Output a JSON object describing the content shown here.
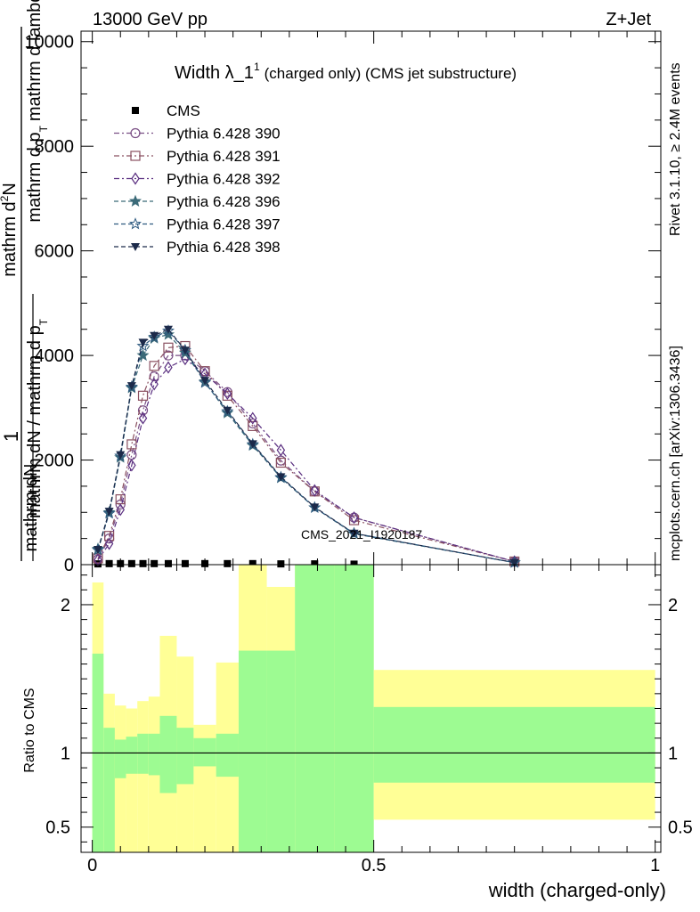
{
  "header": {
    "left": "13000 GeV pp",
    "right": "Z+Jet"
  },
  "side_labels": {
    "rivet": "Rivet 3.1.10, ≥ 2.4M events",
    "mcplots": "mcplots.cern.ch [arXiv:1306.3436]"
  },
  "watermark": "CMS_2021_I1920187",
  "chart_data": [
    {
      "type": "line",
      "title_main": "Width λ_1",
      "title_sup": "1",
      "title_rest": "(charged only) (CMS jet substructure)",
      "ylabel_top": "1",
      "ylabel_frac_top": "mathrm dN / mathrm d p",
      "ylabel_frac_sub": "T",
      "ylabel_frac_bottom_1": "mathrm dN",
      "ylabel_numerator": "mathrm d",
      "ylabel_numerator_sup": "2",
      "ylabel_numerator_n": "N",
      "ylabel_den": "mathrm d p",
      "ylabel_den_sub": "T",
      "ylabel_den_rest": "mathrm d lambda",
      "xlim": [
        -0.02,
        1.01
      ],
      "ylim": [
        0,
        10200
      ],
      "yticks": [
        0,
        2000,
        4000,
        6000,
        8000,
        10000
      ],
      "ytick_labels": [
        "0",
        "2000",
        "4000",
        "6000",
        "8000",
        "10000"
      ],
      "legend_position": "top-left",
      "series": [
        {
          "name": "CMS",
          "color": "#000000",
          "marker": "square-filled",
          "dash": "",
          "x": [
            0.01,
            0.03,
            0.05,
            0.07,
            0.09,
            0.11,
            0.135,
            0.165,
            0.2,
            0.24,
            0.285,
            0.335,
            0.395,
            0.465
          ],
          "y": [
            15,
            20,
            20,
            20,
            20,
            20,
            20,
            20,
            20,
            20,
            20,
            15,
            15,
            10
          ]
        },
        {
          "name": "Pythia 6.428 390",
          "color": "#7a4f85",
          "marker": "circle-open",
          "dash": "6,3,2,3",
          "x": [
            0.01,
            0.03,
            0.05,
            0.07,
            0.09,
            0.11,
            0.135,
            0.165,
            0.2,
            0.24,
            0.285,
            0.335,
            0.395,
            0.465,
            0.75
          ],
          "y": [
            100,
            500,
            1150,
            2100,
            2950,
            3600,
            4000,
            4000,
            3700,
            3300,
            2700,
            1990,
            1400,
            900,
            60
          ]
        },
        {
          "name": "Pythia 6.428 391",
          "color": "#8a5060",
          "marker": "square-open",
          "dash": "6,3,2,3",
          "x": [
            0.01,
            0.03,
            0.05,
            0.07,
            0.09,
            0.11,
            0.135,
            0.165,
            0.2,
            0.24,
            0.285,
            0.335,
            0.395,
            0.465,
            0.75
          ],
          "y": [
            120,
            550,
            1250,
            2300,
            3230,
            3800,
            4150,
            4180,
            3700,
            3230,
            2650,
            1950,
            1400,
            850,
            60
          ]
        },
        {
          "name": "Pythia 6.428 392",
          "color": "#5a2f80",
          "marker": "diamond-open",
          "dash": "6,3,2,3",
          "x": [
            0.01,
            0.03,
            0.05,
            0.07,
            0.09,
            0.11,
            0.135,
            0.165,
            0.2,
            0.24,
            0.285,
            0.335,
            0.395,
            0.465,
            0.75
          ],
          "y": [
            90,
            400,
            1050,
            1900,
            2800,
            3450,
            3770,
            3930,
            3650,
            3270,
            2800,
            2190,
            1420,
            900,
            60
          ]
        },
        {
          "name": "Pythia 6.428 396",
          "color": "#3b6a78",
          "marker": "star-filled",
          "dash": "5,3",
          "x": [
            0.01,
            0.03,
            0.05,
            0.07,
            0.09,
            0.11,
            0.135,
            0.165,
            0.2,
            0.24,
            0.285,
            0.335,
            0.395,
            0.465,
            0.75
          ],
          "y": [
            300,
            1000,
            2050,
            3380,
            4000,
            4330,
            4400,
            4050,
            3500,
            2900,
            2280,
            1660,
            1090,
            590,
            40
          ]
        },
        {
          "name": "Pythia 6.428 397",
          "color": "#2e5a80",
          "marker": "star-open",
          "dash": "5,3",
          "x": [
            0.01,
            0.03,
            0.05,
            0.07,
            0.09,
            0.11,
            0.135,
            0.165,
            0.2,
            0.24,
            0.285,
            0.335,
            0.395,
            0.465,
            0.75
          ],
          "y": [
            280,
            980,
            2080,
            3400,
            4180,
            4350,
            4470,
            4100,
            3480,
            2930,
            2300,
            1670,
            1090,
            600,
            40
          ]
        },
        {
          "name": "Pythia 6.428 398",
          "color": "#1c2a4a",
          "marker": "triangle-down-filled",
          "dash": "5,3",
          "x": [
            0.01,
            0.03,
            0.05,
            0.07,
            0.09,
            0.11,
            0.135,
            0.165,
            0.2,
            0.24,
            0.285,
            0.335,
            0.395,
            0.465,
            0.75
          ],
          "y": [
            290,
            1020,
            2100,
            3420,
            4250,
            4380,
            4500,
            4100,
            3520,
            2950,
            2310,
            1680,
            1100,
            600,
            40
          ]
        }
      ]
    },
    {
      "type": "area",
      "ylabel": "Ratio to CMS",
      "xlabel": "width (charged-only)",
      "xlim": [
        -0.02,
        1.01
      ],
      "ylim": [
        0.33,
        2.27
      ],
      "yticks": [
        0.5,
        1,
        2
      ],
      "ytick_labels": [
        "0.5",
        "1",
        "2"
      ],
      "xticks": [
        0,
        0.5,
        1
      ],
      "xtick_labels": [
        "0",
        "0.5",
        "1"
      ],
      "reference_line": 1,
      "band_colors": {
        "inner": "#9dfb92",
        "outer": "#ffff96"
      },
      "bins": [
        {
          "lo": 0.0,
          "hi": 0.02,
          "in_lo": 0.33,
          "in_hi": 1.67,
          "out_lo": 0.33,
          "out_hi": 2.15
        },
        {
          "lo": 0.02,
          "hi": 0.04,
          "in_lo": 0.33,
          "in_hi": 1.17,
          "out_lo": 0.33,
          "out_hi": 1.4
        },
        {
          "lo": 0.04,
          "hi": 0.06,
          "in_lo": 0.83,
          "in_hi": 1.09,
          "out_lo": 0.33,
          "out_hi": 1.32
        },
        {
          "lo": 0.06,
          "hi": 0.08,
          "in_lo": 0.86,
          "in_hi": 1.11,
          "out_lo": 0.33,
          "out_hi": 1.3
        },
        {
          "lo": 0.08,
          "hi": 0.1,
          "in_lo": 0.86,
          "in_hi": 1.13,
          "out_lo": 0.33,
          "out_hi": 1.35
        },
        {
          "lo": 0.1,
          "hi": 0.12,
          "in_lo": 0.85,
          "in_hi": 1.13,
          "out_lo": 0.33,
          "out_hi": 1.38
        },
        {
          "lo": 0.12,
          "hi": 0.15,
          "in_lo": 0.73,
          "in_hi": 1.25,
          "out_lo": 0.33,
          "out_hi": 1.79
        },
        {
          "lo": 0.15,
          "hi": 0.18,
          "in_lo": 0.79,
          "in_hi": 1.17,
          "out_lo": 0.33,
          "out_hi": 1.65
        },
        {
          "lo": 0.18,
          "hi": 0.22,
          "in_lo": 0.91,
          "in_hi": 1.1,
          "out_lo": 0.33,
          "out_hi": 1.19
        },
        {
          "lo": 0.22,
          "hi": 0.26,
          "in_lo": 0.84,
          "in_hi": 1.13,
          "out_lo": 0.33,
          "out_hi": 1.61
        },
        {
          "lo": 0.26,
          "hi": 0.31,
          "in_lo": 0.33,
          "in_hi": 1.69,
          "out_lo": 0.33,
          "out_hi": 2.27
        },
        {
          "lo": 0.31,
          "hi": 0.36,
          "in_lo": 0.33,
          "in_hi": 1.69,
          "out_lo": 0.33,
          "out_hi": 2.12
        },
        {
          "lo": 0.36,
          "hi": 0.43,
          "in_lo": 0.33,
          "in_hi": 2.27,
          "out_lo": 0.33,
          "out_hi": 2.27
        },
        {
          "lo": 0.43,
          "hi": 0.5,
          "in_lo": 0.33,
          "in_hi": 2.27,
          "out_lo": 0.33,
          "out_hi": 2.27
        },
        {
          "lo": 0.5,
          "hi": 1.0,
          "in_lo": 0.8,
          "in_hi": 1.31,
          "out_lo": 0.55,
          "out_hi": 1.56
        }
      ],
      "outer_gaps": [
        {
          "lo": 0.02,
          "hi": 0.04,
          "from": 0.33,
          "to": 0.33
        }
      ]
    }
  ]
}
